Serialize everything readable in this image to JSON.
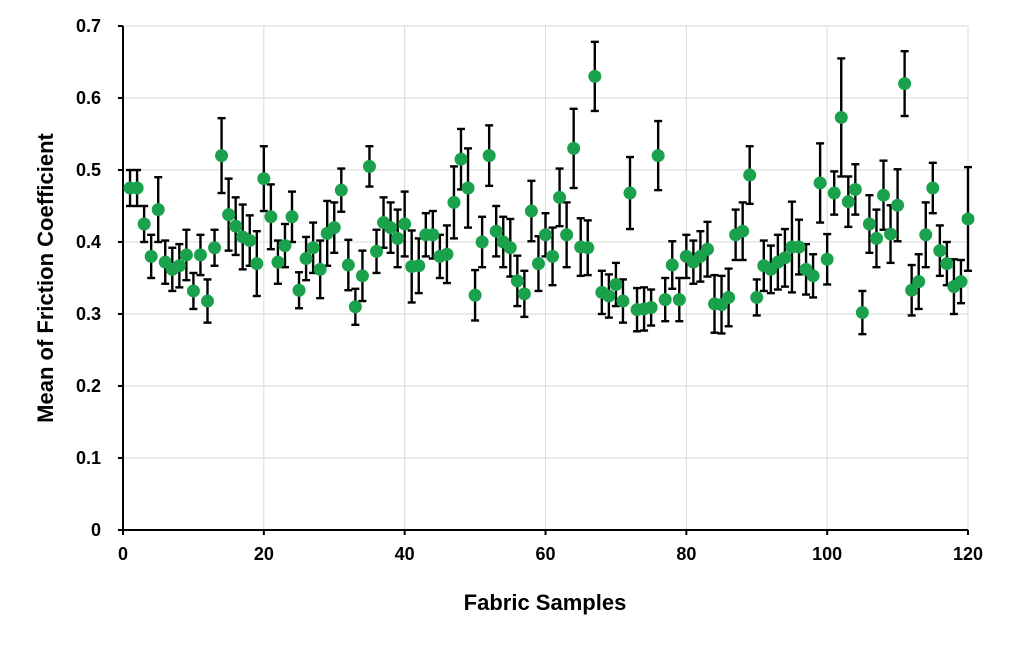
{
  "chart_data": {
    "type": "scatter",
    "title": "",
    "xlabel": "Fabric Samples",
    "ylabel": "Mean of Friction Coefficient",
    "xlim": [
      0,
      120
    ],
    "ylim": [
      0,
      0.7
    ],
    "x_ticks": [
      "0",
      "20",
      "40",
      "60",
      "80",
      "100",
      "120"
    ],
    "y_ticks": [
      "0",
      "0.1",
      "0.2",
      "0.3",
      "0.4",
      "0.5",
      "0.6",
      "0.7"
    ],
    "grid": true,
    "legend": "none",
    "marker_color": "#1aa14b",
    "error_bar_color": "#000000",
    "series": [
      {
        "x": [
          1,
          2,
          3,
          4,
          5,
          6,
          7,
          8,
          9,
          10,
          11,
          12,
          13,
          14,
          15,
          16,
          17,
          18,
          19,
          20,
          21,
          22,
          23,
          24,
          25,
          26,
          27,
          28,
          29,
          30,
          31,
          32,
          33,
          34,
          35,
          36,
          37,
          38,
          39,
          40,
          41,
          42,
          43,
          44,
          45,
          46,
          47,
          48,
          49,
          50,
          51,
          52,
          53,
          54,
          55,
          56,
          57,
          58,
          59,
          60,
          61,
          62,
          63,
          64,
          65,
          66,
          67,
          68,
          69,
          70,
          71,
          72,
          73,
          74,
          75,
          76,
          77,
          78,
          79,
          80,
          81,
          82,
          83,
          84,
          85,
          86,
          87,
          88,
          89,
          90,
          91,
          92,
          93,
          94,
          95,
          96,
          97,
          98,
          99,
          100,
          101,
          102,
          103,
          104,
          105,
          106,
          107,
          108,
          109,
          110,
          111,
          112,
          113,
          114,
          115,
          116,
          117,
          118,
          119,
          120
        ],
        "y": [
          0.475,
          0.475,
          0.425,
          0.38,
          0.445,
          0.372,
          0.362,
          0.367,
          0.382,
          0.332,
          0.382,
          0.318,
          0.392,
          0.52,
          0.438,
          0.422,
          0.407,
          0.402,
          0.37,
          0.488,
          0.435,
          0.372,
          0.395,
          0.435,
          0.333,
          0.377,
          0.392,
          0.362,
          0.412,
          0.42,
          0.472,
          0.368,
          0.31,
          0.353,
          0.505,
          0.387,
          0.427,
          0.42,
          0.405,
          0.425,
          0.366,
          0.367,
          0.41,
          0.41,
          0.38,
          0.383,
          0.455,
          0.515,
          0.475,
          0.326,
          0.4,
          0.52,
          0.415,
          0.4,
          0.392,
          0.346,
          0.328,
          0.443,
          0.37,
          0.41,
          0.38,
          0.462,
          0.41,
          0.53,
          0.393,
          0.392,
          0.63,
          0.33,
          0.325,
          0.341,
          0.318,
          0.468,
          0.306,
          0.307,
          0.309,
          0.52,
          0.32,
          0.368,
          0.32,
          0.38,
          0.372,
          0.38,
          0.39,
          0.314,
          0.313,
          0.323,
          0.41,
          0.415,
          0.493,
          0.323,
          0.367,
          0.362,
          0.372,
          0.378,
          0.393,
          0.393,
          0.362,
          0.353,
          0.482,
          0.376,
          0.468,
          0.573,
          0.456,
          0.473,
          0.302,
          0.425,
          0.405,
          0.465,
          0.411,
          0.451,
          0.62,
          0.333,
          0.345,
          0.41,
          0.475,
          0.388,
          0.37,
          0.338,
          0.345,
          0.432
        ],
        "error": [
          0.025,
          0.025,
          0.025,
          0.03,
          0.045,
          0.03,
          0.03,
          0.03,
          0.035,
          0.025,
          0.028,
          0.03,
          0.025,
          0.052,
          0.05,
          0.04,
          0.045,
          0.035,
          0.045,
          0.045,
          0.045,
          0.03,
          0.03,
          0.035,
          0.025,
          0.03,
          0.035,
          0.04,
          0.045,
          0.035,
          0.03,
          0.035,
          0.025,
          0.035,
          0.028,
          0.03,
          0.035,
          0.035,
          0.04,
          0.045,
          0.05,
          0.038,
          0.03,
          0.033,
          0.03,
          0.04,
          0.05,
          0.042,
          0.055,
          0.035,
          0.035,
          0.042,
          0.035,
          0.035,
          0.04,
          0.035,
          0.032,
          0.042,
          0.038,
          0.03,
          0.04,
          0.04,
          0.045,
          0.055,
          0.04,
          0.038,
          0.048,
          0.03,
          0.03,
          0.03,
          0.03,
          0.05,
          0.03,
          0.03,
          0.025,
          0.048,
          0.03,
          0.033,
          0.03,
          0.03,
          0.03,
          0.035,
          0.038,
          0.04,
          0.04,
          0.04,
          0.035,
          0.04,
          0.04,
          0.025,
          0.035,
          0.033,
          0.038,
          0.04,
          0.063,
          0.038,
          0.035,
          0.03,
          0.055,
          0.035,
          0.03,
          0.082,
          0.035,
          0.035,
          0.03,
          0.04,
          0.04,
          0.048,
          0.04,
          0.05,
          0.045,
          0.035,
          0.038,
          0.045,
          0.035,
          0.035,
          0.03,
          0.038,
          0.03,
          0.072
        ]
      }
    ]
  }
}
